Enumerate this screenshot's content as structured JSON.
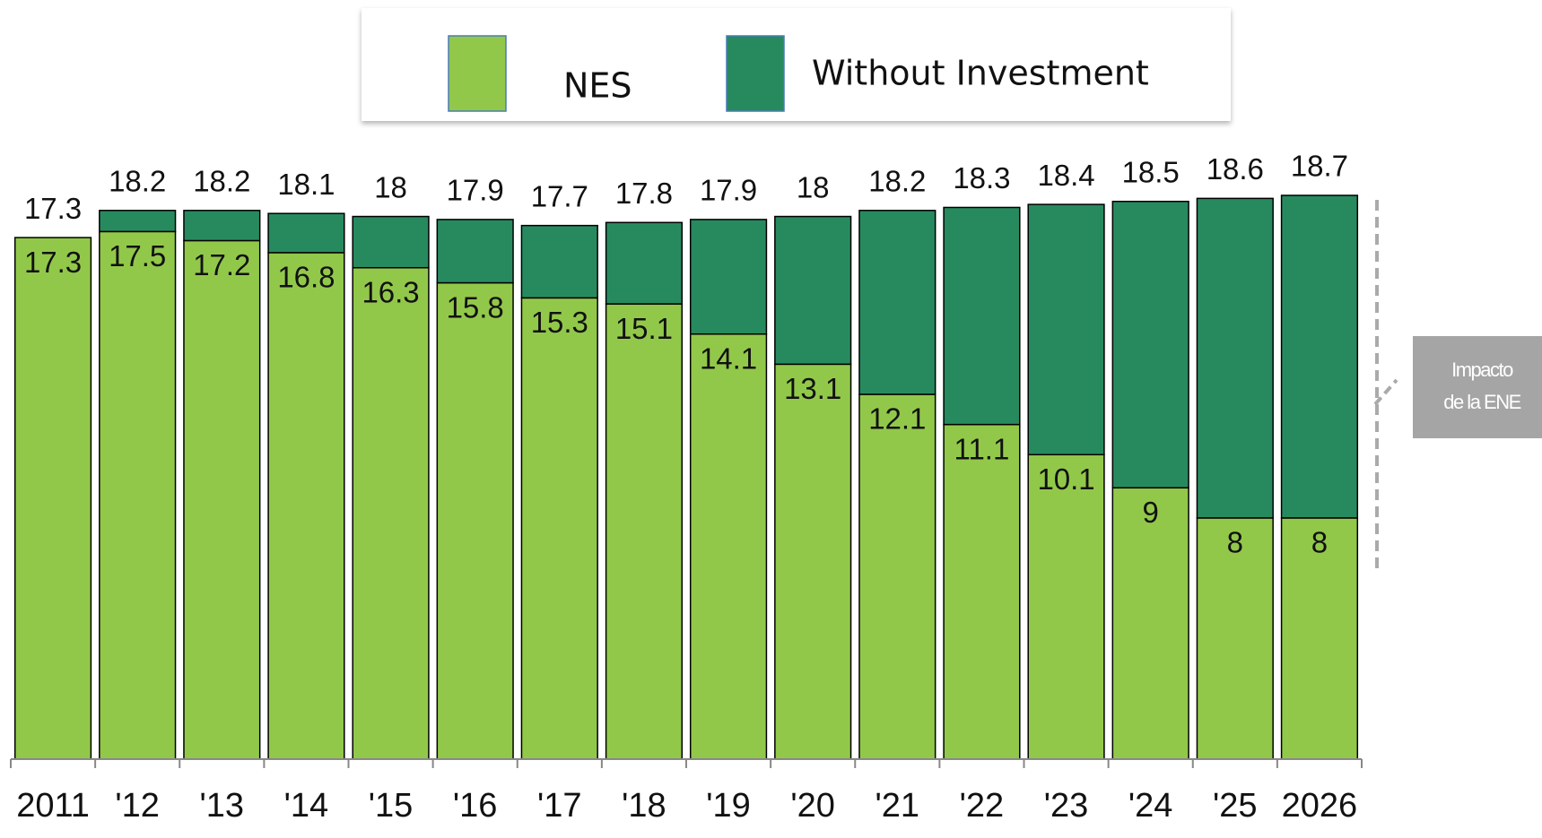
{
  "chart_data": {
    "type": "stacked_bar",
    "categories": [
      "2011",
      "'12",
      "'13",
      "'14",
      "'15",
      "'16",
      "'17",
      "'18",
      "'19",
      "'20",
      "'21",
      "'22",
      "'23",
      "'24",
      "'25",
      "2026"
    ],
    "series": [
      {
        "name": "NES",
        "color": "#92c84a",
        "values": [
          17.3,
          17.5,
          17.2,
          16.8,
          16.3,
          15.8,
          15.3,
          15.1,
          14.1,
          13.1,
          12.1,
          11.1,
          10.1,
          9.0,
          8.0,
          8.0
        ]
      },
      {
        "name": "Without Investment",
        "color": "#278a5f",
        "values": [
          0,
          0.7,
          1.0,
          1.3,
          1.7,
          2.1,
          2.4,
          2.7,
          3.8,
          4.9,
          6.1,
          7.2,
          8.3,
          9.5,
          10.6,
          10.7
        ]
      }
    ],
    "totals": [
      17.3,
      18.2,
      18.2,
      18.1,
      18.0,
      17.9,
      17.7,
      17.8,
      17.9,
      18.0,
      18.2,
      18.3,
      18.4,
      18.5,
      18.6,
      18.7
    ],
    "annotation": [
      "Impacto",
      "de la ENE"
    ],
    "legend_position": "top"
  }
}
